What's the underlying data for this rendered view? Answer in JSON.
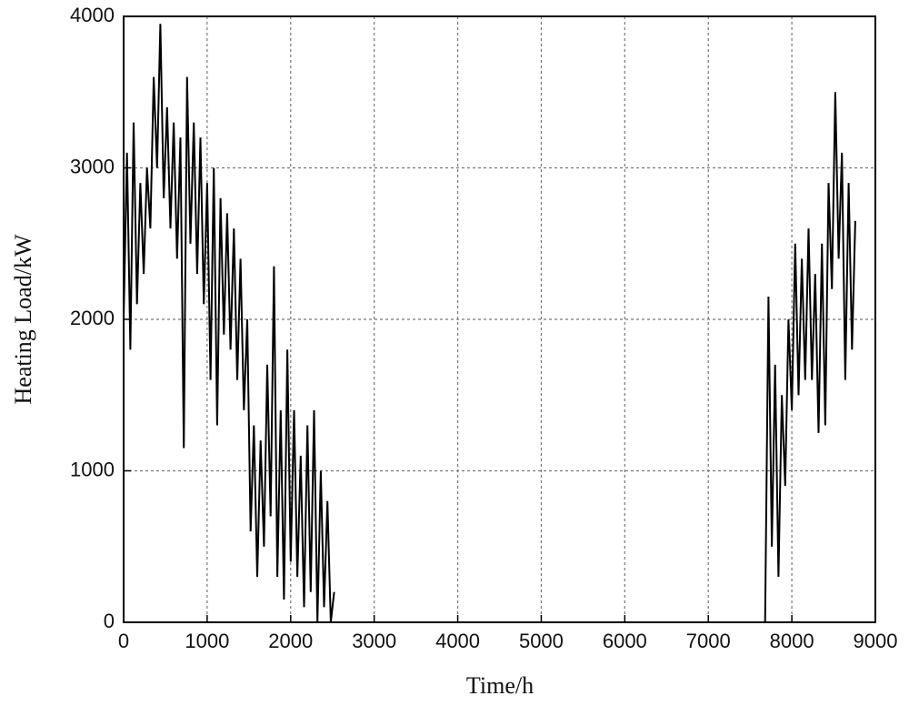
{
  "chart_data": {
    "type": "line",
    "x_label": "Time/h",
    "y_label": "Heating Load/kW",
    "x": [
      0,
      40,
      80,
      120,
      160,
      200,
      240,
      280,
      320,
      360,
      400,
      440,
      480,
      520,
      560,
      600,
      640,
      680,
      720,
      760,
      800,
      840,
      880,
      920,
      960,
      1000,
      1040,
      1080,
      1120,
      1160,
      1200,
      1240,
      1280,
      1320,
      1360,
      1400,
      1440,
      1480,
      1520,
      1560,
      1600,
      1640,
      1680,
      1720,
      1760,
      1800,
      1840,
      1880,
      1920,
      1960,
      2000,
      2040,
      2080,
      2120,
      2160,
      2200,
      2240,
      2280,
      2320,
      2360,
      2400,
      2440,
      2480,
      2520,
      5000,
      7680,
      7720,
      7760,
      7800,
      7840,
      7880,
      7920,
      7960,
      8000,
      8040,
      8080,
      8120,
      8160,
      8200,
      8240,
      8280,
      8320,
      8360,
      8400,
      8440,
      8480,
      8520,
      8560,
      8600,
      8640,
      8680,
      8720,
      8760
    ],
    "series": [
      {
        "name": "Heating Load",
        "color": "#000000",
        "values": [
          2000,
          3100,
          1800,
          3300,
          2100,
          2900,
          2300,
          3000,
          2600,
          3600,
          3000,
          3950,
          2800,
          3400,
          2600,
          3300,
          2400,
          3200,
          1150,
          3600,
          2500,
          3300,
          2300,
          3200,
          2100,
          2900,
          1600,
          3000,
          1300,
          2800,
          1900,
          2700,
          1800,
          2600,
          1600,
          2400,
          1400,
          2000,
          600,
          1300,
          300,
          1200,
          500,
          1700,
          700,
          2350,
          300,
          1400,
          150,
          1800,
          400,
          1400,
          300,
          1100,
          100,
          1300,
          200,
          1400,
          0,
          1000,
          100,
          800,
          0,
          200,
          null,
          0,
          2150,
          500,
          1700,
          300,
          1500,
          900,
          2000,
          1400,
          2500,
          1500,
          2400,
          1600,
          2600,
          1600,
          2300,
          1250,
          2500,
          1300,
          2900,
          2200,
          3500,
          2400,
          3100,
          1600,
          2900,
          1800,
          2650
        ]
      }
    ],
    "xlim": [
      0,
      9000
    ],
    "ylim": [
      0,
      4000
    ],
    "xticks": [
      0,
      1000,
      2000,
      3000,
      4000,
      5000,
      6000,
      7000,
      8000,
      9000
    ],
    "yticks": [
      0,
      1000,
      2000,
      3000,
      4000
    ],
    "grid": true
  }
}
